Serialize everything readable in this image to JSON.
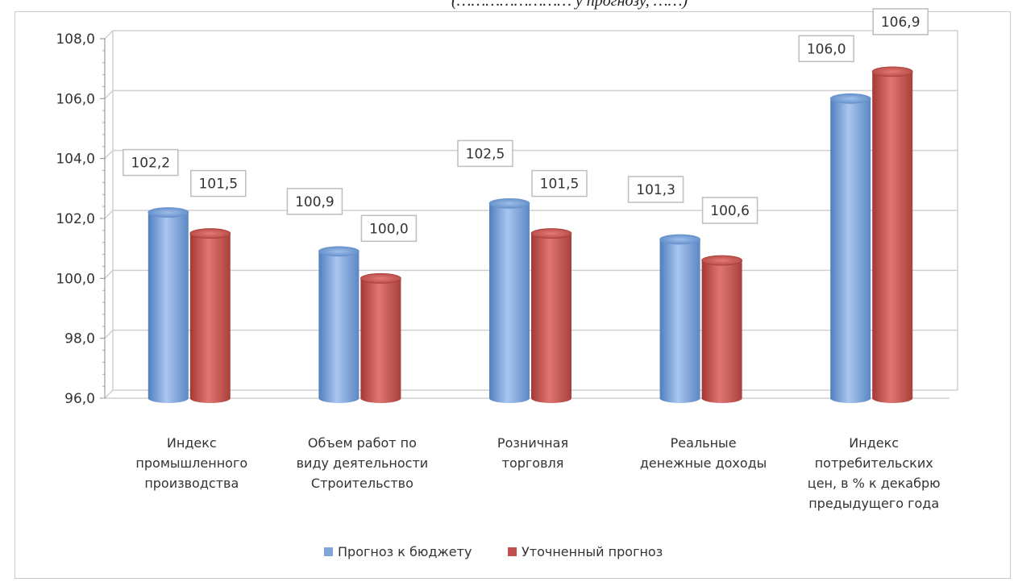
{
  "header": {
    "caption": "(…………………… у прогнозу, ……)"
  },
  "chart_data": {
    "type": "bar",
    "title": "",
    "xlabel": "",
    "ylabel": "",
    "ylim": [
      96,
      108
    ],
    "yticks": [
      "96,0",
      "98,0",
      "100,0",
      "102,0",
      "104,0",
      "106,0",
      "108,0"
    ],
    "grid": true,
    "legend_position": "bottom",
    "categories": [
      [
        "Индекс",
        "промышленного",
        "производства"
      ],
      [
        "Объем работ по",
        "виду деятельности",
        "Строительство"
      ],
      [
        "Розничная",
        "торговля"
      ],
      [
        "Реальные",
        "денежные доходы"
      ],
      [
        "Индекс",
        "потребительских",
        "цен, в % к декабрю",
        "предыдущего года"
      ]
    ],
    "series": [
      {
        "name": "Прогноз к бюджету",
        "color": "#7fa6d9",
        "values": [
          102.2,
          100.9,
          102.5,
          101.3,
          106.0
        ],
        "labels": [
          "102,2",
          "100,9",
          "102,5",
          "101,3",
          "106,0"
        ]
      },
      {
        "name": "Уточненный прогноз",
        "color": "#c0504d",
        "values": [
          101.5,
          100.0,
          101.5,
          100.6,
          106.9
        ],
        "labels": [
          "101,5",
          "100,0",
          "101,5",
          "100,6",
          "106,9"
        ]
      }
    ]
  }
}
